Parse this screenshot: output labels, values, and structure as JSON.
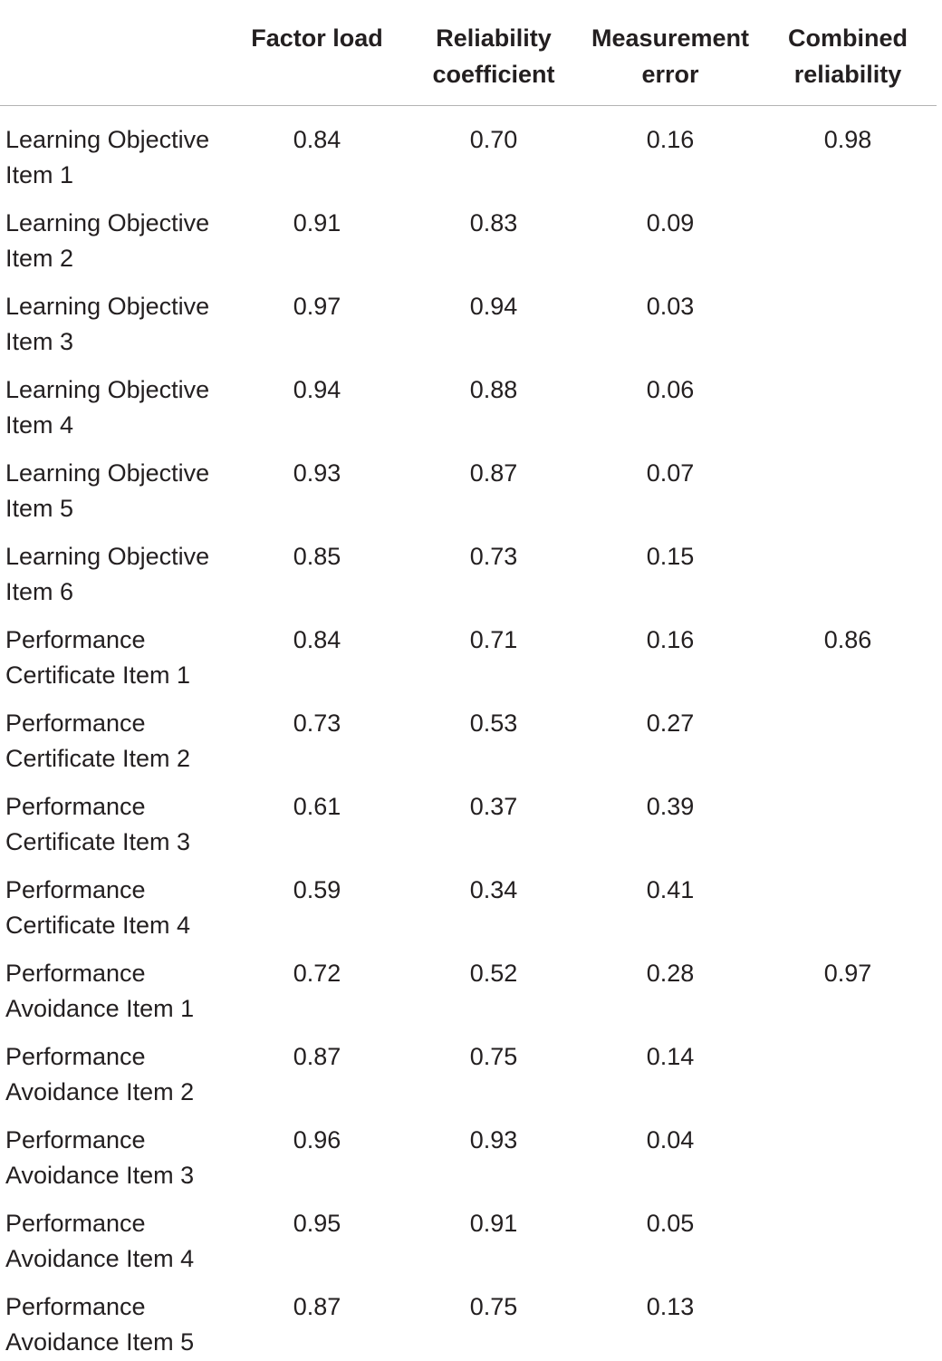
{
  "table": {
    "headers": [
      "",
      "Factor load",
      "Reliability coefficient",
      "Measurement error",
      "Combined reliability"
    ],
    "header_lines": [
      [
        ""
      ],
      [
        "Factor load"
      ],
      [
        "Reliability",
        "coefficient"
      ],
      [
        "Measurement",
        "error"
      ],
      [
        "Combined",
        "reliability"
      ]
    ],
    "rows": [
      {
        "label_lines": [
          "Learning Objective",
          "Item 1"
        ],
        "factor_load": "0.84",
        "reliability_coefficient": "0.70",
        "measurement_error": "0.16",
        "combined_reliability": "0.98"
      },
      {
        "label_lines": [
          "Learning Objective",
          "Item 2"
        ],
        "factor_load": "0.91",
        "reliability_coefficient": "0.83",
        "measurement_error": "0.09",
        "combined_reliability": ""
      },
      {
        "label_lines": [
          "Learning Objective",
          "Item 3"
        ],
        "factor_load": "0.97",
        "reliability_coefficient": "0.94",
        "measurement_error": "0.03",
        "combined_reliability": ""
      },
      {
        "label_lines": [
          "Learning Objective",
          "Item 4"
        ],
        "factor_load": "0.94",
        "reliability_coefficient": "0.88",
        "measurement_error": "0.06",
        "combined_reliability": ""
      },
      {
        "label_lines": [
          "Learning Objective",
          "Item 5"
        ],
        "factor_load": "0.93",
        "reliability_coefficient": "0.87",
        "measurement_error": "0.07",
        "combined_reliability": ""
      },
      {
        "label_lines": [
          "Learning Objective",
          "Item 6"
        ],
        "factor_load": "0.85",
        "reliability_coefficient": "0.73",
        "measurement_error": "0.15",
        "combined_reliability": ""
      },
      {
        "label_lines": [
          "Performance",
          "Certificate Item 1"
        ],
        "factor_load": "0.84",
        "reliability_coefficient": "0.71",
        "measurement_error": "0.16",
        "combined_reliability": "0.86"
      },
      {
        "label_lines": [
          "Performance",
          "Certificate Item 2"
        ],
        "factor_load": "0.73",
        "reliability_coefficient": "0.53",
        "measurement_error": "0.27",
        "combined_reliability": ""
      },
      {
        "label_lines": [
          "Performance",
          "Certificate Item 3"
        ],
        "factor_load": "0.61",
        "reliability_coefficient": "0.37",
        "measurement_error": "0.39",
        "combined_reliability": ""
      },
      {
        "label_lines": [
          "Performance",
          "Certificate Item 4"
        ],
        "factor_load": "0.59",
        "reliability_coefficient": "0.34",
        "measurement_error": "0.41",
        "combined_reliability": ""
      },
      {
        "label_lines": [
          "Performance",
          "Avoidance Item 1"
        ],
        "factor_load": "0.72",
        "reliability_coefficient": "0.52",
        "measurement_error": "0.28",
        "combined_reliability": "0.97"
      },
      {
        "label_lines": [
          "Performance",
          "Avoidance Item 2"
        ],
        "factor_load": "0.87",
        "reliability_coefficient": "0.75",
        "measurement_error": "0.14",
        "combined_reliability": ""
      },
      {
        "label_lines": [
          "Performance",
          "Avoidance Item 3"
        ],
        "factor_load": "0.96",
        "reliability_coefficient": "0.93",
        "measurement_error": "0.04",
        "combined_reliability": ""
      },
      {
        "label_lines": [
          "Performance",
          "Avoidance Item 4"
        ],
        "factor_load": "0.95",
        "reliability_coefficient": "0.91",
        "measurement_error": "0.05",
        "combined_reliability": ""
      },
      {
        "label_lines": [
          "Performance",
          "Avoidance Item 5"
        ],
        "factor_load": "0.87",
        "reliability_coefficient": "0.75",
        "measurement_error": "0.13",
        "combined_reliability": ""
      }
    ]
  },
  "colors": {
    "text": "#231f20",
    "rule": "#b3b3b3",
    "background": "#ffffff"
  }
}
